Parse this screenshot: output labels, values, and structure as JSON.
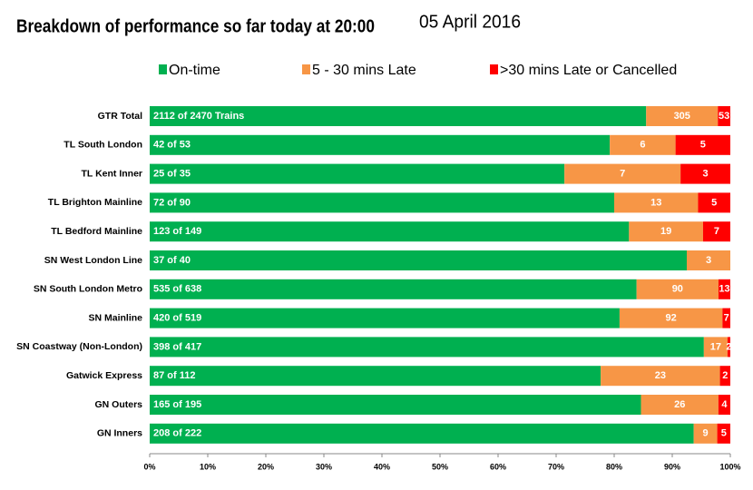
{
  "chart_data": {
    "type": "bar",
    "orientation": "horizontal",
    "stacking": "percent",
    "title": "Breakdown of performance so far today at 20:00",
    "subtitle": "05 April 2016",
    "categories": [
      "GTR Total",
      "TL South London",
      "TL Kent Inner",
      "TL Brighton Mainline",
      "TL Bedford Mainline",
      "SN West London Line",
      "SN South London Metro",
      "SN Mainline",
      "SN Coastway (Non-London)",
      "Gatwick Express",
      "GN Outers",
      "GN Inners"
    ],
    "series": [
      {
        "name": "On-time",
        "color": "#00b050",
        "values": [
          2112,
          42,
          25,
          72,
          123,
          37,
          535,
          420,
          398,
          87,
          165,
          208
        ],
        "value_labels": [
          "2112 of 2470 Trains",
          "42 of 53",
          "25 of 35",
          "72 of 90",
          "123 of 149",
          "37 of 40",
          "535 of 638",
          "420 of 519",
          "398 of 417",
          "87 of 112",
          "165 of 195",
          "208 of 222"
        ]
      },
      {
        "name": "5 - 30 mins Late",
        "color": "#f79646",
        "values": [
          305,
          6,
          7,
          13,
          19,
          3,
          90,
          92,
          17,
          23,
          26,
          9
        ]
      },
      {
        "name": ">30 mins Late or Cancelled",
        "color": "#ff0000",
        "values": [
          53,
          5,
          3,
          5,
          7,
          0,
          13,
          7,
          2,
          2,
          4,
          5
        ]
      }
    ],
    "xlim": [
      0,
      100
    ],
    "xticks": [
      {
        "value": 0,
        "label": "0%"
      },
      {
        "value": 10,
        "label": "10%"
      },
      {
        "value": 20,
        "label": "20%"
      },
      {
        "value": 30,
        "label": "30%"
      },
      {
        "value": 40,
        "label": "40%"
      },
      {
        "value": 50,
        "label": "50%"
      },
      {
        "value": 60,
        "label": "60%"
      },
      {
        "value": 70,
        "label": "70%"
      },
      {
        "value": 80,
        "label": "80%"
      },
      {
        "value": 90,
        "label": "90%"
      },
      {
        "value": 100,
        "label": "100%"
      }
    ],
    "legend": "top",
    "grid": false
  }
}
